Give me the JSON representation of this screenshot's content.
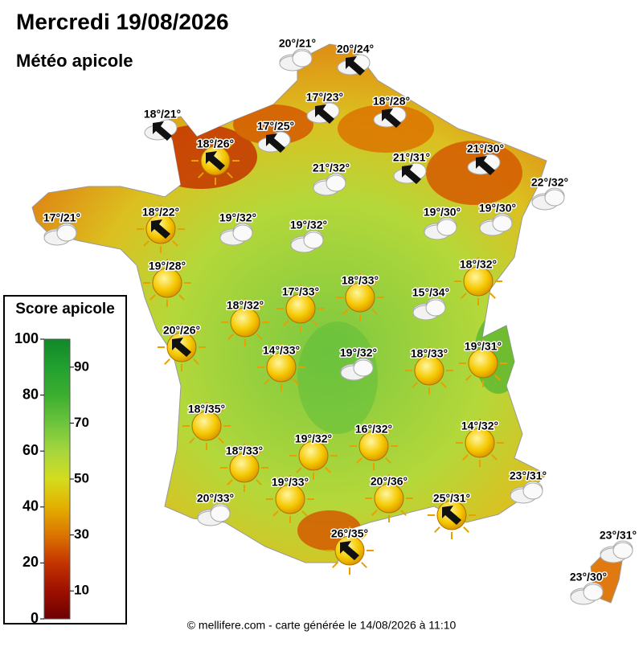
{
  "header": {
    "title": "Mercredi 19/08/2026",
    "subtitle": "Météo apicole"
  },
  "legend": {
    "title": "Score apicole",
    "range": [
      0,
      100
    ],
    "ticks": [
      0,
      10,
      20,
      30,
      40,
      50,
      60,
      70,
      80,
      90,
      100
    ],
    "colors": [
      "#6e0000",
      "#9c1000",
      "#c43400",
      "#dc7400",
      "#e3b000",
      "#d4dc1e",
      "#a6d63e",
      "#6cc43c",
      "#3cae30",
      "#22a030",
      "#108828"
    ]
  },
  "stations": [
    {
      "label": "20°/21°",
      "icon": "cloud"
    },
    {
      "label": "20°/24°",
      "icon": "wind"
    },
    {
      "label": "17°/23°",
      "icon": "wind"
    },
    {
      "label": "18°/28°",
      "icon": "wind"
    },
    {
      "label": "18°/21°",
      "icon": "wind"
    },
    {
      "label": "17°/25°",
      "icon": "wind"
    },
    {
      "label": "18°/26°",
      "icon": "sun-wind"
    },
    {
      "label": "21°/32°",
      "icon": "cloud"
    },
    {
      "label": "21°/31°",
      "icon": "wind"
    },
    {
      "label": "21°/30°",
      "icon": "wind"
    },
    {
      "label": "22°/32°",
      "icon": "cloud"
    },
    {
      "label": "17°/21°",
      "icon": "cloud"
    },
    {
      "label": "18°/22°",
      "icon": "sun-wind"
    },
    {
      "label": "19°/32°",
      "icon": "cloud"
    },
    {
      "label": "19°/32°",
      "icon": "cloud"
    },
    {
      "label": "19°/30°",
      "icon": "cloud"
    },
    {
      "label": "19°/30°",
      "icon": "cloud"
    },
    {
      "label": "19°/28°",
      "icon": "sun"
    },
    {
      "label": "18°/32°",
      "icon": "sun"
    },
    {
      "label": "17°/33°",
      "icon": "sun"
    },
    {
      "label": "18°/33°",
      "icon": "sun"
    },
    {
      "label": "15°/34°",
      "icon": "cloud"
    },
    {
      "label": "18°/32°",
      "icon": "sun"
    },
    {
      "label": "20°/26°",
      "icon": "sun-wind"
    },
    {
      "label": "14°/33°",
      "icon": "sun"
    },
    {
      "label": "19°/32°",
      "icon": "cloud"
    },
    {
      "label": "18°/33°",
      "icon": "sun"
    },
    {
      "label": "19°/31°",
      "icon": "sun"
    },
    {
      "label": "18°/35°",
      "icon": "sun"
    },
    {
      "label": "16°/32°",
      "icon": "sun"
    },
    {
      "label": "14°/32°",
      "icon": "sun"
    },
    {
      "label": "18°/33°",
      "icon": "sun"
    },
    {
      "label": "19°/32°",
      "icon": "sun"
    },
    {
      "label": "19°/33°",
      "icon": "sun"
    },
    {
      "label": "20°/36°",
      "icon": "sun"
    },
    {
      "label": "20°/33°",
      "icon": "cloud"
    },
    {
      "label": "23°/31°",
      "icon": "cloud"
    },
    {
      "label": "25°/31°",
      "icon": "sun-wind"
    },
    {
      "label": "26°/35°",
      "icon": "sun-wind"
    },
    {
      "label": "23°/31°",
      "icon": "cloud"
    },
    {
      "label": "23°/30°",
      "icon": "cloud"
    }
  ],
  "footer": "© mellifere.com - carte générée le 14/08/2026 à 11:10"
}
